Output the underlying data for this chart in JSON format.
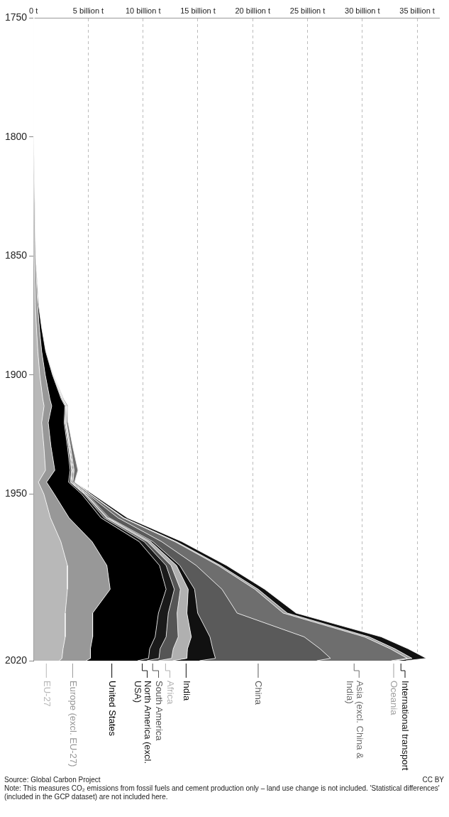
{
  "chart_data": {
    "type": "area",
    "stacked": true,
    "orientation": "horizontal",
    "x": [
      1750,
      1800,
      1850,
      1870,
      1880,
      1890,
      1900,
      1910,
      1913,
      1920,
      1930,
      1940,
      1945,
      1950,
      1960,
      1970,
      1980,
      1990,
      2000,
      2010,
      2015,
      2019,
      2020
    ],
    "ylim": [
      2020,
      1750
    ],
    "yticks": [
      1750,
      1800,
      1850,
      1900,
      1950,
      2020
    ],
    "xlim": [
      0,
      37
    ],
    "xticks": [
      {
        "value": 0,
        "label": "0 t"
      },
      {
        "value": 5,
        "label": "5 billion t"
      },
      {
        "value": 10,
        "label": "10 billion t"
      },
      {
        "value": 15,
        "label": "15 billion t"
      },
      {
        "value": 20,
        "label": "20 billion t"
      },
      {
        "value": 25,
        "label": "25 billion t"
      },
      {
        "value": 30,
        "label": "30 billion t"
      },
      {
        "value": 35,
        "label": "35 billion t"
      }
    ],
    "grid": "x",
    "legend": "bottom",
    "series": [
      {
        "name": "EU-27",
        "color": "#b8b8b8",
        "values": [
          0,
          0,
          0.06,
          0.17,
          0.27,
          0.4,
          0.58,
          0.85,
          0.97,
          0.75,
          0.95,
          1.1,
          0.45,
          0.95,
          1.55,
          2.5,
          3.1,
          3.1,
          2.9,
          2.9,
          2.7,
          2.6,
          2.35
        ]
      },
      {
        "name": "Europe (excl. EU-27)",
        "color": "#989898",
        "values": [
          0.01,
          0.03,
          0.13,
          0.2,
          0.27,
          0.35,
          0.5,
          0.65,
          0.7,
          0.6,
          0.65,
          0.85,
          0.75,
          0.95,
          1.7,
          2.85,
          3.6,
          3.9,
          2.5,
          2.5,
          2.5,
          2.6,
          2.45
        ]
      },
      {
        "name": "United States",
        "color": "#000000",
        "values": [
          0,
          0,
          0.02,
          0.08,
          0.2,
          0.36,
          0.66,
          1.03,
          1.2,
          1.45,
          1.5,
          1.4,
          2.0,
          2.5,
          2.9,
          4.3,
          4.8,
          5.1,
          6.0,
          5.7,
          5.4,
          5.3,
          4.7
        ]
      },
      {
        "name": "North America (excl. USA)",
        "color": "#1a1a1a",
        "values": [
          0,
          0,
          0,
          0,
          0.01,
          0.02,
          0.03,
          0.06,
          0.07,
          0.08,
          0.1,
          0.12,
          0.15,
          0.2,
          0.3,
          0.45,
          0.6,
          0.75,
          0.9,
          1.0,
          0.95,
          0.95,
          0.85
        ]
      },
      {
        "name": "South America",
        "color": "#555555",
        "values": [
          0,
          0,
          0,
          0,
          0,
          0,
          0.01,
          0.03,
          0.03,
          0.04,
          0.05,
          0.06,
          0.07,
          0.1,
          0.2,
          0.3,
          0.45,
          0.55,
          0.8,
          1.1,
          1.2,
          1.15,
          1.05
        ]
      },
      {
        "name": "Africa",
        "color": "#b0b0b0",
        "values": [
          0,
          0,
          0,
          0,
          0,
          0,
          0.01,
          0.02,
          0.03,
          0.03,
          0.04,
          0.05,
          0.06,
          0.08,
          0.15,
          0.3,
          0.5,
          0.72,
          0.9,
          1.2,
          1.3,
          1.4,
          1.3
        ]
      },
      {
        "name": "India",
        "color": "#111111",
        "values": [
          0,
          0,
          0,
          0,
          0,
          0.01,
          0.02,
          0.03,
          0.04,
          0.05,
          0.06,
          0.08,
          0.09,
          0.1,
          0.12,
          0.2,
          0.3,
          0.58,
          0.98,
          1.7,
          2.3,
          2.6,
          2.45
        ]
      },
      {
        "name": "China",
        "color": "#5a5a5a",
        "values": [
          0,
          0,
          0,
          0,
          0,
          0,
          0,
          0.01,
          0.02,
          0.02,
          0.03,
          0.05,
          0.03,
          0.08,
          0.8,
          0.8,
          1.5,
          2.5,
          3.6,
          8.6,
          9.8,
          10.5,
          10.7
        ]
      },
      {
        "name": "Asia (excl. China & India)",
        "color": "#6e6e6e",
        "values": [
          0,
          0,
          0,
          0,
          0,
          0.01,
          0.03,
          0.08,
          0.1,
          0.14,
          0.2,
          0.35,
          0.15,
          0.2,
          0.45,
          1.2,
          2.0,
          3.0,
          4.2,
          5.5,
          6.4,
          7.0,
          6.8
        ]
      },
      {
        "name": "Oceania",
        "color": "#a0a0a0",
        "values": [
          0,
          0,
          0,
          0,
          0.01,
          0.01,
          0.02,
          0.03,
          0.03,
          0.03,
          0.03,
          0.04,
          0.04,
          0.05,
          0.1,
          0.15,
          0.22,
          0.3,
          0.38,
          0.43,
          0.43,
          0.44,
          0.42
        ]
      },
      {
        "name": "International transport",
        "color": "#111111",
        "values": [
          0,
          0,
          0,
          0,
          0,
          0,
          0,
          0,
          0,
          0,
          0,
          0,
          0,
          0.18,
          0.3,
          0.5,
          0.55,
          0.6,
          0.8,
          1.1,
          1.2,
          1.3,
          0.9
        ]
      }
    ],
    "annotations": [
      "Source: Global Carbon Project",
      "CC BY",
      "Note: This measures CO₂ emissions from fossil fuels and cement production only – land use change is not included. 'Statistical differences' (included in the GCP dataset) are not included here."
    ]
  }
}
